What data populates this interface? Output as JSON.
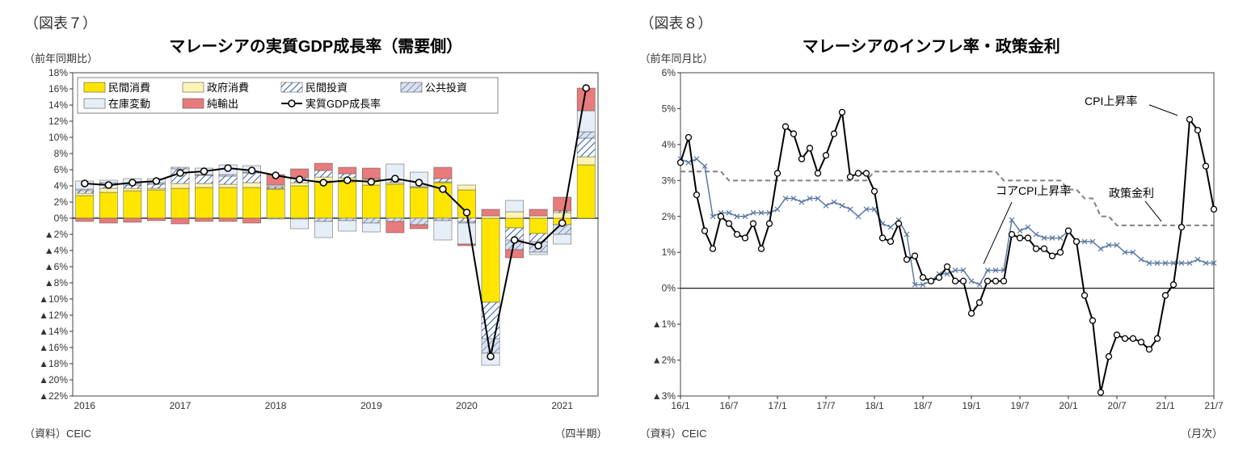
{
  "left": {
    "fig_label": "（図表７）",
    "y_unit": "（前年同期比）",
    "title": "マレーシアの実質GDP成長率（需要側）",
    "source": "（資料）CEIC",
    "x_unit": "（四半期）",
    "ylim": [
      -22,
      18
    ],
    "ytick_step": 2,
    "x_years": [
      "2016",
      "2017",
      "2018",
      "2019",
      "2020",
      "2021"
    ],
    "legend": {
      "pc": "民間消費",
      "gc": "政府消費",
      "pi": "民間投資",
      "gi": "公共投資",
      "inv": "在庫変動",
      "nx": "純輸出",
      "gdp": "実質GDP成長率"
    },
    "colors": {
      "pc": "#ffe600",
      "gc": "#fff4b3",
      "pi_fill": "#ffffff",
      "pi_hatch": "#2e5aa6",
      "gi_fill": "#d9e2f0",
      "gi_hatch": "#7a8eb8",
      "inv": "#e6eff7",
      "nx": "#e87b7b",
      "gdp_line": "#000000",
      "gdp_marker_fill": "#ffffff",
      "axis": "#333333",
      "zero": "#000000",
      "border": "#444444"
    },
    "bars": [
      {
        "pc": 2.8,
        "gc": 0.3,
        "pi": 0.3,
        "gi": 0.2,
        "inv": 1.0,
        "nx": -0.4,
        "gdp": 4.3
      },
      {
        "pc": 3.2,
        "gc": 0.5,
        "pi": 0.4,
        "gi": 0.3,
        "inv": 0.3,
        "nx": -0.6,
        "gdp": 4.1
      },
      {
        "pc": 3.4,
        "gc": 0.3,
        "pi": 0.4,
        "gi": 0.2,
        "inv": 0.6,
        "nx": -0.5,
        "gdp": 4.4
      },
      {
        "pc": 3.5,
        "gc": 0.2,
        "pi": 0.5,
        "gi": 0.2,
        "inv": 0.5,
        "nx": -0.3,
        "gdp": 4.6
      },
      {
        "pc": 3.7,
        "gc": 0.6,
        "pi": 1.8,
        "gi": 0.2,
        "inv": 0.0,
        "nx": -0.7,
        "gdp": 5.6
      },
      {
        "pc": 3.8,
        "gc": 0.5,
        "pi": 1.0,
        "gi": 0.1,
        "inv": 0.8,
        "nx": -0.4,
        "gdp": 5.8
      },
      {
        "pc": 3.8,
        "gc": 0.4,
        "pi": 1.0,
        "gi": 0.2,
        "inv": 1.2,
        "nx": -0.4,
        "gdp": 6.2
      },
      {
        "pc": 3.8,
        "gc": 0.6,
        "pi": 1.2,
        "gi": 0.1,
        "inv": 0.8,
        "nx": -0.6,
        "gdp": 5.9
      },
      {
        "pc": 3.6,
        "gc": 0.1,
        "pi": 0.2,
        "gi": -0.1,
        "inv": 0.2,
        "nx": 1.3,
        "gdp": 5.3
      },
      {
        "pc": 4.0,
        "gc": 0.4,
        "pi": 0.6,
        "gi": -0.1,
        "inv": -1.2,
        "nx": 1.1,
        "gdp": 4.8
      },
      {
        "pc": 4.6,
        "gc": 0.5,
        "pi": 0.8,
        "gi": -0.4,
        "inv": -2.0,
        "nx": 0.9,
        "gdp": 4.4
      },
      {
        "pc": 4.5,
        "gc": 0.5,
        "pi": 0.5,
        "gi": -0.3,
        "inv": -1.3,
        "nx": 0.8,
        "gdp": 4.7
      },
      {
        "pc": 4.1,
        "gc": 0.7,
        "pi": 0.1,
        "gi": -0.6,
        "inv": -1.1,
        "nx": 1.3,
        "gdp": 4.5
      },
      {
        "pc": 4.2,
        "gc": 0.2,
        "pi": 0.3,
        "gi": -0.4,
        "inv": 2.0,
        "nx": -1.4,
        "gdp": 4.9
      },
      {
        "pc": 3.8,
        "gc": 0.1,
        "pi": 0.0,
        "gi": -0.8,
        "inv": 1.8,
        "nx": -0.5,
        "gdp": 4.4
      },
      {
        "pc": 4.4,
        "gc": 0.1,
        "pi": 0.4,
        "gi": -0.3,
        "inv": -2.4,
        "nx": 1.4,
        "gdp": 3.6
      },
      {
        "pc": 3.5,
        "gc": 0.6,
        "pi": -0.4,
        "gi": -0.2,
        "inv": -2.6,
        "nx": -0.2,
        "gdp": 0.7
      },
      {
        "pc": -10.4,
        "gc": 0.3,
        "pi": -4.5,
        "gi": -1.8,
        "inv": -1.5,
        "nx": 0.8,
        "gdp": -17.1
      },
      {
        "pc": -1.2,
        "gc": 0.8,
        "pi": -1.5,
        "gi": -1.2,
        "inv": 1.4,
        "nx": -1.0,
        "gdp": -2.7
      },
      {
        "pc": -1.9,
        "gc": 0.3,
        "pi": -1.0,
        "gi": -1.3,
        "inv": -0.3,
        "nx": 0.8,
        "gdp": -3.4
      },
      {
        "pc": -0.8,
        "gc": 0.7,
        "pi": 0.2,
        "gi": -1.2,
        "inv": -1.2,
        "nx": 1.7,
        "gdp": -0.6
      },
      {
        "pc": 6.6,
        "gc": 1.0,
        "pi": 2.3,
        "gi": 0.8,
        "inv": 2.6,
        "nx": 2.8,
        "gdp": 16.1
      }
    ]
  },
  "right": {
    "fig_label": "（図表８）",
    "y_unit": "（前年同月比）",
    "title": "マレーシアのインフレ率・政策金利",
    "source": "（資料）CEIC",
    "x_unit": "（月次）",
    "ylim": [
      -3,
      6
    ],
    "ytick_step": 1,
    "x_labels": [
      "16/1",
      "16/7",
      "17/1",
      "17/7",
      "18/1",
      "18/7",
      "19/1",
      "19/7",
      "20/1",
      "20/7",
      "21/1",
      "21/7"
    ],
    "annotations": {
      "cpi": "CPI上昇率",
      "rate": "政策金利",
      "core": "コアCPI上昇率"
    },
    "colors": {
      "cpi_line": "#000000",
      "cpi_marker": "#ffffff",
      "core_line": "#5b7aa6",
      "core_marker": "#5b7aa6",
      "rate_line": "#808080",
      "axis": "#333333",
      "zero": "#000000",
      "border": "#444444"
    },
    "cpi": [
      3.5,
      4.2,
      2.6,
      1.6,
      1.1,
      2.0,
      1.8,
      1.5,
      1.4,
      1.8,
      1.1,
      1.8,
      3.2,
      4.5,
      4.3,
      3.6,
      3.9,
      3.2,
      3.7,
      4.3,
      4.9,
      3.1,
      3.2,
      3.2,
      2.7,
      1.4,
      1.3,
      1.8,
      0.8,
      0.9,
      0.3,
      0.2,
      0.3,
      0.6,
      0.2,
      0.2,
      -0.7,
      -0.4,
      0.2,
      0.2,
      0.2,
      1.5,
      1.4,
      1.4,
      1.1,
      1.1,
      0.9,
      1.0,
      1.6,
      1.3,
      -0.2,
      -0.9,
      -2.9,
      -1.9,
      -1.3,
      -1.4,
      -1.4,
      -1.5,
      -1.7,
      -1.4,
      -0.2,
      0.1,
      1.7,
      4.7,
      4.4,
      3.4,
      2.2
    ],
    "core": [
      3.6,
      3.5,
      3.6,
      3.4,
      2.0,
      2.1,
      2.1,
      2.0,
      2.0,
      2.1,
      2.1,
      2.1,
      2.2,
      2.5,
      2.5,
      2.4,
      2.5,
      2.5,
      2.3,
      2.4,
      2.3,
      2.2,
      2.0,
      2.2,
      2.2,
      1.8,
      1.7,
      1.9,
      1.5,
      0.1,
      0.1,
      0.2,
      0.4,
      0.4,
      0.5,
      0.5,
      0.2,
      0.1,
      0.5,
      0.5,
      0.5,
      1.9,
      1.6,
      1.7,
      1.5,
      1.4,
      1.4,
      1.4,
      1.6,
      1.3,
      1.3,
      1.3,
      1.1,
      1.2,
      1.2,
      1.0,
      1.0,
      0.8,
      0.7,
      0.7,
      0.7,
      0.7,
      0.7,
      0.7,
      0.8,
      0.7,
      0.7
    ],
    "rate": [
      3.25,
      3.25,
      3.25,
      3.25,
      3.25,
      3.25,
      3.0,
      3.0,
      3.0,
      3.0,
      3.0,
      3.0,
      3.0,
      3.0,
      3.0,
      3.0,
      3.0,
      3.0,
      3.0,
      3.0,
      3.0,
      3.0,
      3.0,
      3.0,
      3.25,
      3.25,
      3.25,
      3.25,
      3.25,
      3.25,
      3.25,
      3.25,
      3.25,
      3.25,
      3.25,
      3.25,
      3.25,
      3.25,
      3.25,
      3.25,
      3.0,
      3.0,
      3.0,
      3.0,
      3.0,
      3.0,
      3.0,
      3.0,
      2.75,
      2.75,
      2.5,
      2.5,
      2.0,
      2.0,
      1.75,
      1.75,
      1.75,
      1.75,
      1.75,
      1.75,
      1.75,
      1.75,
      1.75,
      1.75,
      1.75,
      1.75,
      1.75
    ]
  }
}
